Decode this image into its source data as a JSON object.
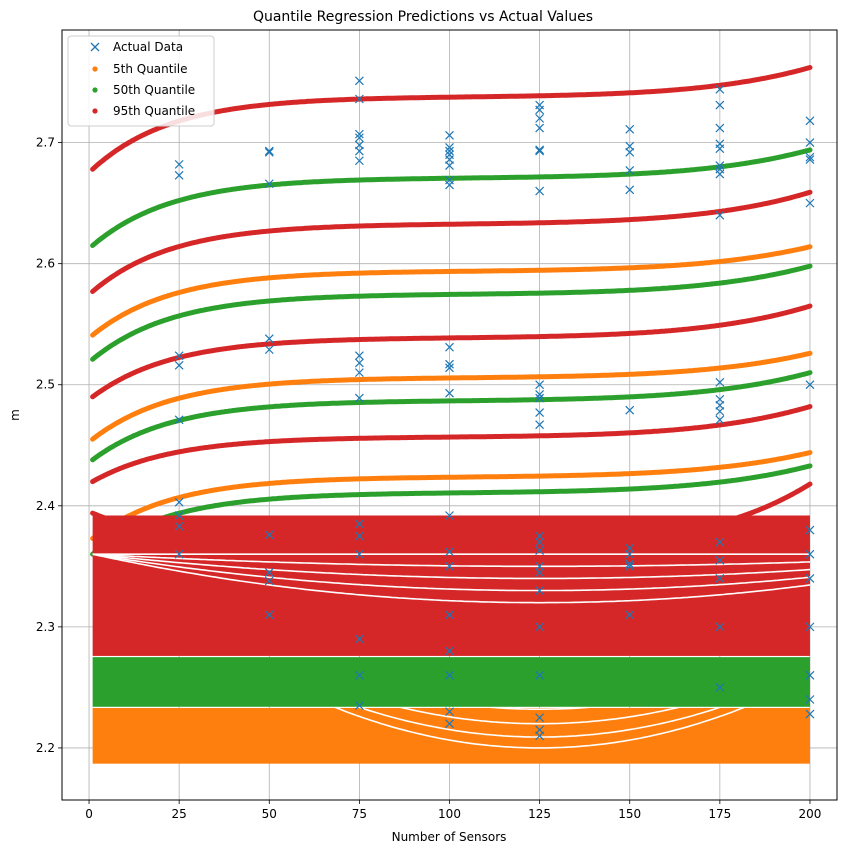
{
  "chart_data": {
    "type": "scatter",
    "title": "Quantile Regression Predictions vs Actual Values",
    "xlabel": "Number of Sensors",
    "ylabel": "m",
    "xlim": [
      -7.5,
      207.5
    ],
    "ylim": [
      2.157,
      2.793
    ],
    "grid": true,
    "legend_position": "top-left",
    "x_ticks": [
      0,
      25,
      50,
      75,
      100,
      125,
      150,
      175,
      200
    ],
    "y_ticks": [
      2.2,
      2.3,
      2.4,
      2.5,
      2.6,
      2.7
    ],
    "y_tick_labels": [
      "2.2",
      "2.3",
      "2.4",
      "2.5",
      "2.6",
      "2.7"
    ],
    "colors": {
      "actual": "#1f77b4",
      "q05": "#ff7f0e",
      "q50": "#2ca02c",
      "q95": "#d62728",
      "grid": "#b0b0b0"
    },
    "legend": [
      "Actual Data",
      "5th Quantile",
      "50th Quantile",
      "95th Quantile"
    ],
    "actual_data": [
      {
        "x": 25,
        "y": [
          2.682,
          2.673,
          2.524,
          2.516,
          2.471,
          2.403,
          2.392,
          2.383,
          2.36
        ]
      },
      {
        "x": 50,
        "y": [
          2.693,
          2.692,
          2.666,
          2.538,
          2.529,
          2.376,
          2.345,
          2.338,
          2.31
        ]
      },
      {
        "x": 75,
        "y": [
          2.751,
          2.736,
          2.707,
          2.704,
          2.698,
          2.693,
          2.685,
          2.524,
          2.518,
          2.51,
          2.489,
          2.385,
          2.375,
          2.36,
          2.29,
          2.26,
          2.235
        ]
      },
      {
        "x": 100,
        "y": [
          2.706,
          2.696,
          2.693,
          2.69,
          2.686,
          2.681,
          2.669,
          2.665,
          2.531,
          2.517,
          2.514,
          2.493,
          2.392,
          2.362,
          2.35,
          2.31,
          2.28,
          2.26,
          2.23,
          2.22
        ]
      },
      {
        "x": 125,
        "y": [
          2.731,
          2.727,
          2.72,
          2.712,
          2.694,
          2.693,
          2.66,
          2.5,
          2.492,
          2.489,
          2.477,
          2.467,
          2.375,
          2.37,
          2.363,
          2.35,
          2.345,
          2.33,
          2.3,
          2.26,
          2.225,
          2.215,
          2.21
        ]
      },
      {
        "x": 150,
        "y": [
          2.711,
          2.697,
          2.692,
          2.677,
          2.661,
          2.479,
          2.365,
          2.36,
          2.352,
          2.35,
          2.31
        ]
      },
      {
        "x": 175,
        "y": [
          2.744,
          2.731,
          2.712,
          2.699,
          2.695,
          2.681,
          2.678,
          2.674,
          2.64,
          2.502,
          2.488,
          2.483,
          2.478,
          2.471,
          2.37,
          2.355,
          2.34,
          2.3,
          2.25
        ]
      },
      {
        "x": 200,
        "y": [
          2.718,
          2.7,
          2.688,
          2.686,
          2.65,
          2.5,
          2.38,
          2.36,
          2.34,
          2.3,
          2.26,
          2.24,
          2.228
        ]
      }
    ],
    "curve_x_range": [
      1,
      200
    ],
    "q05_bands": [
      {
        "start": 2.541,
        "plateau": 2.594,
        "end": 2.614
      },
      {
        "start": 2.455,
        "plateau": 2.506,
        "end": 2.526
      },
      {
        "start": 2.373,
        "plateau": 2.424,
        "end": 2.444
      }
    ],
    "q50_bands": [
      {
        "start": 2.615,
        "plateau": 2.671,
        "end": 2.694
      },
      {
        "start": 2.521,
        "plateau": 2.575,
        "end": 2.598
      },
      {
        "start": 2.438,
        "plateau": 2.487,
        "end": 2.51
      },
      {
        "start": 2.36,
        "plateau": 2.411,
        "end": 2.433
      }
    ],
    "q95_bands": [
      {
        "start": 2.678,
        "plateau": 2.738,
        "end": 2.762
      },
      {
        "start": 2.577,
        "plateau": 2.633,
        "end": 2.659
      },
      {
        "start": 2.49,
        "plateau": 2.539,
        "end": 2.565
      },
      {
        "start": 2.42,
        "plateau": 2.457,
        "end": 2.482
      },
      {
        "start": 2.394,
        "plateau": 2.365,
        "end": 2.418
      }
    ],
    "dense_region": {
      "q05": {
        "low": 2.187,
        "high": 2.233
      },
      "q50": {
        "low": 2.234,
        "high": 2.275
      },
      "q95": {
        "low": 2.276,
        "high": 2.392
      }
    },
    "bowl_curves": {
      "q05": [
        2.262,
        2.25,
        2.232,
        2.22,
        2.209,
        2.2
      ],
      "q50": [
        2.345,
        2.333,
        2.322,
        2.316,
        2.303,
        2.29
      ],
      "q95": [
        2.36,
        2.35,
        2.34,
        2.33,
        2.32
      ]
    }
  }
}
